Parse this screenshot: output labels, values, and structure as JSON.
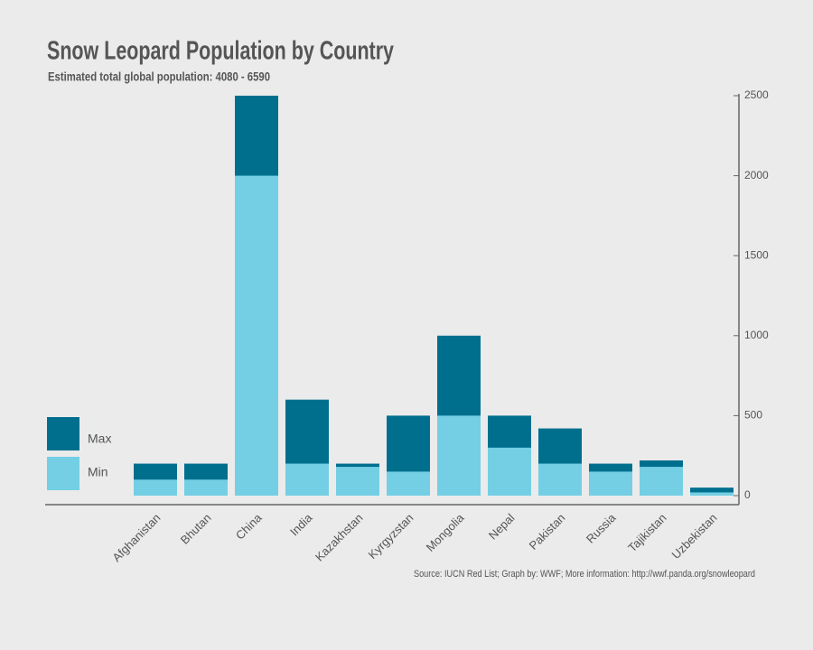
{
  "chart_data": {
    "type": "bar",
    "title": "Snow Leopard Population by Country",
    "subtitle": "Estimated total global population: 4080 - 6590",
    "source": "Source: IUCN Red List; Graph by: WWF; More information: http://wwf.panda.org/snowleopard",
    "categories": [
      "Afghanistan",
      "Bhutan",
      "China",
      "India",
      "Kazakhstan",
      "Kyrgyzstan",
      "Mongolia",
      "Nepal",
      "Pakistan",
      "Russia",
      "Tajikistan",
      "Uzbekistan"
    ],
    "series": [
      {
        "name": "Max",
        "color": "#006f8e",
        "values": [
          200,
          200,
          2500,
          600,
          200,
          500,
          1000,
          500,
          420,
          200,
          220,
          50
        ]
      },
      {
        "name": "Min",
        "color": "#74cfe4",
        "values": [
          100,
          100,
          2000,
          200,
          180,
          150,
          500,
          300,
          200,
          150,
          180,
          20
        ]
      }
    ],
    "ylim": [
      0,
      2500
    ],
    "yticks": [
      0,
      500,
      1000,
      1500,
      2000,
      2500
    ]
  }
}
